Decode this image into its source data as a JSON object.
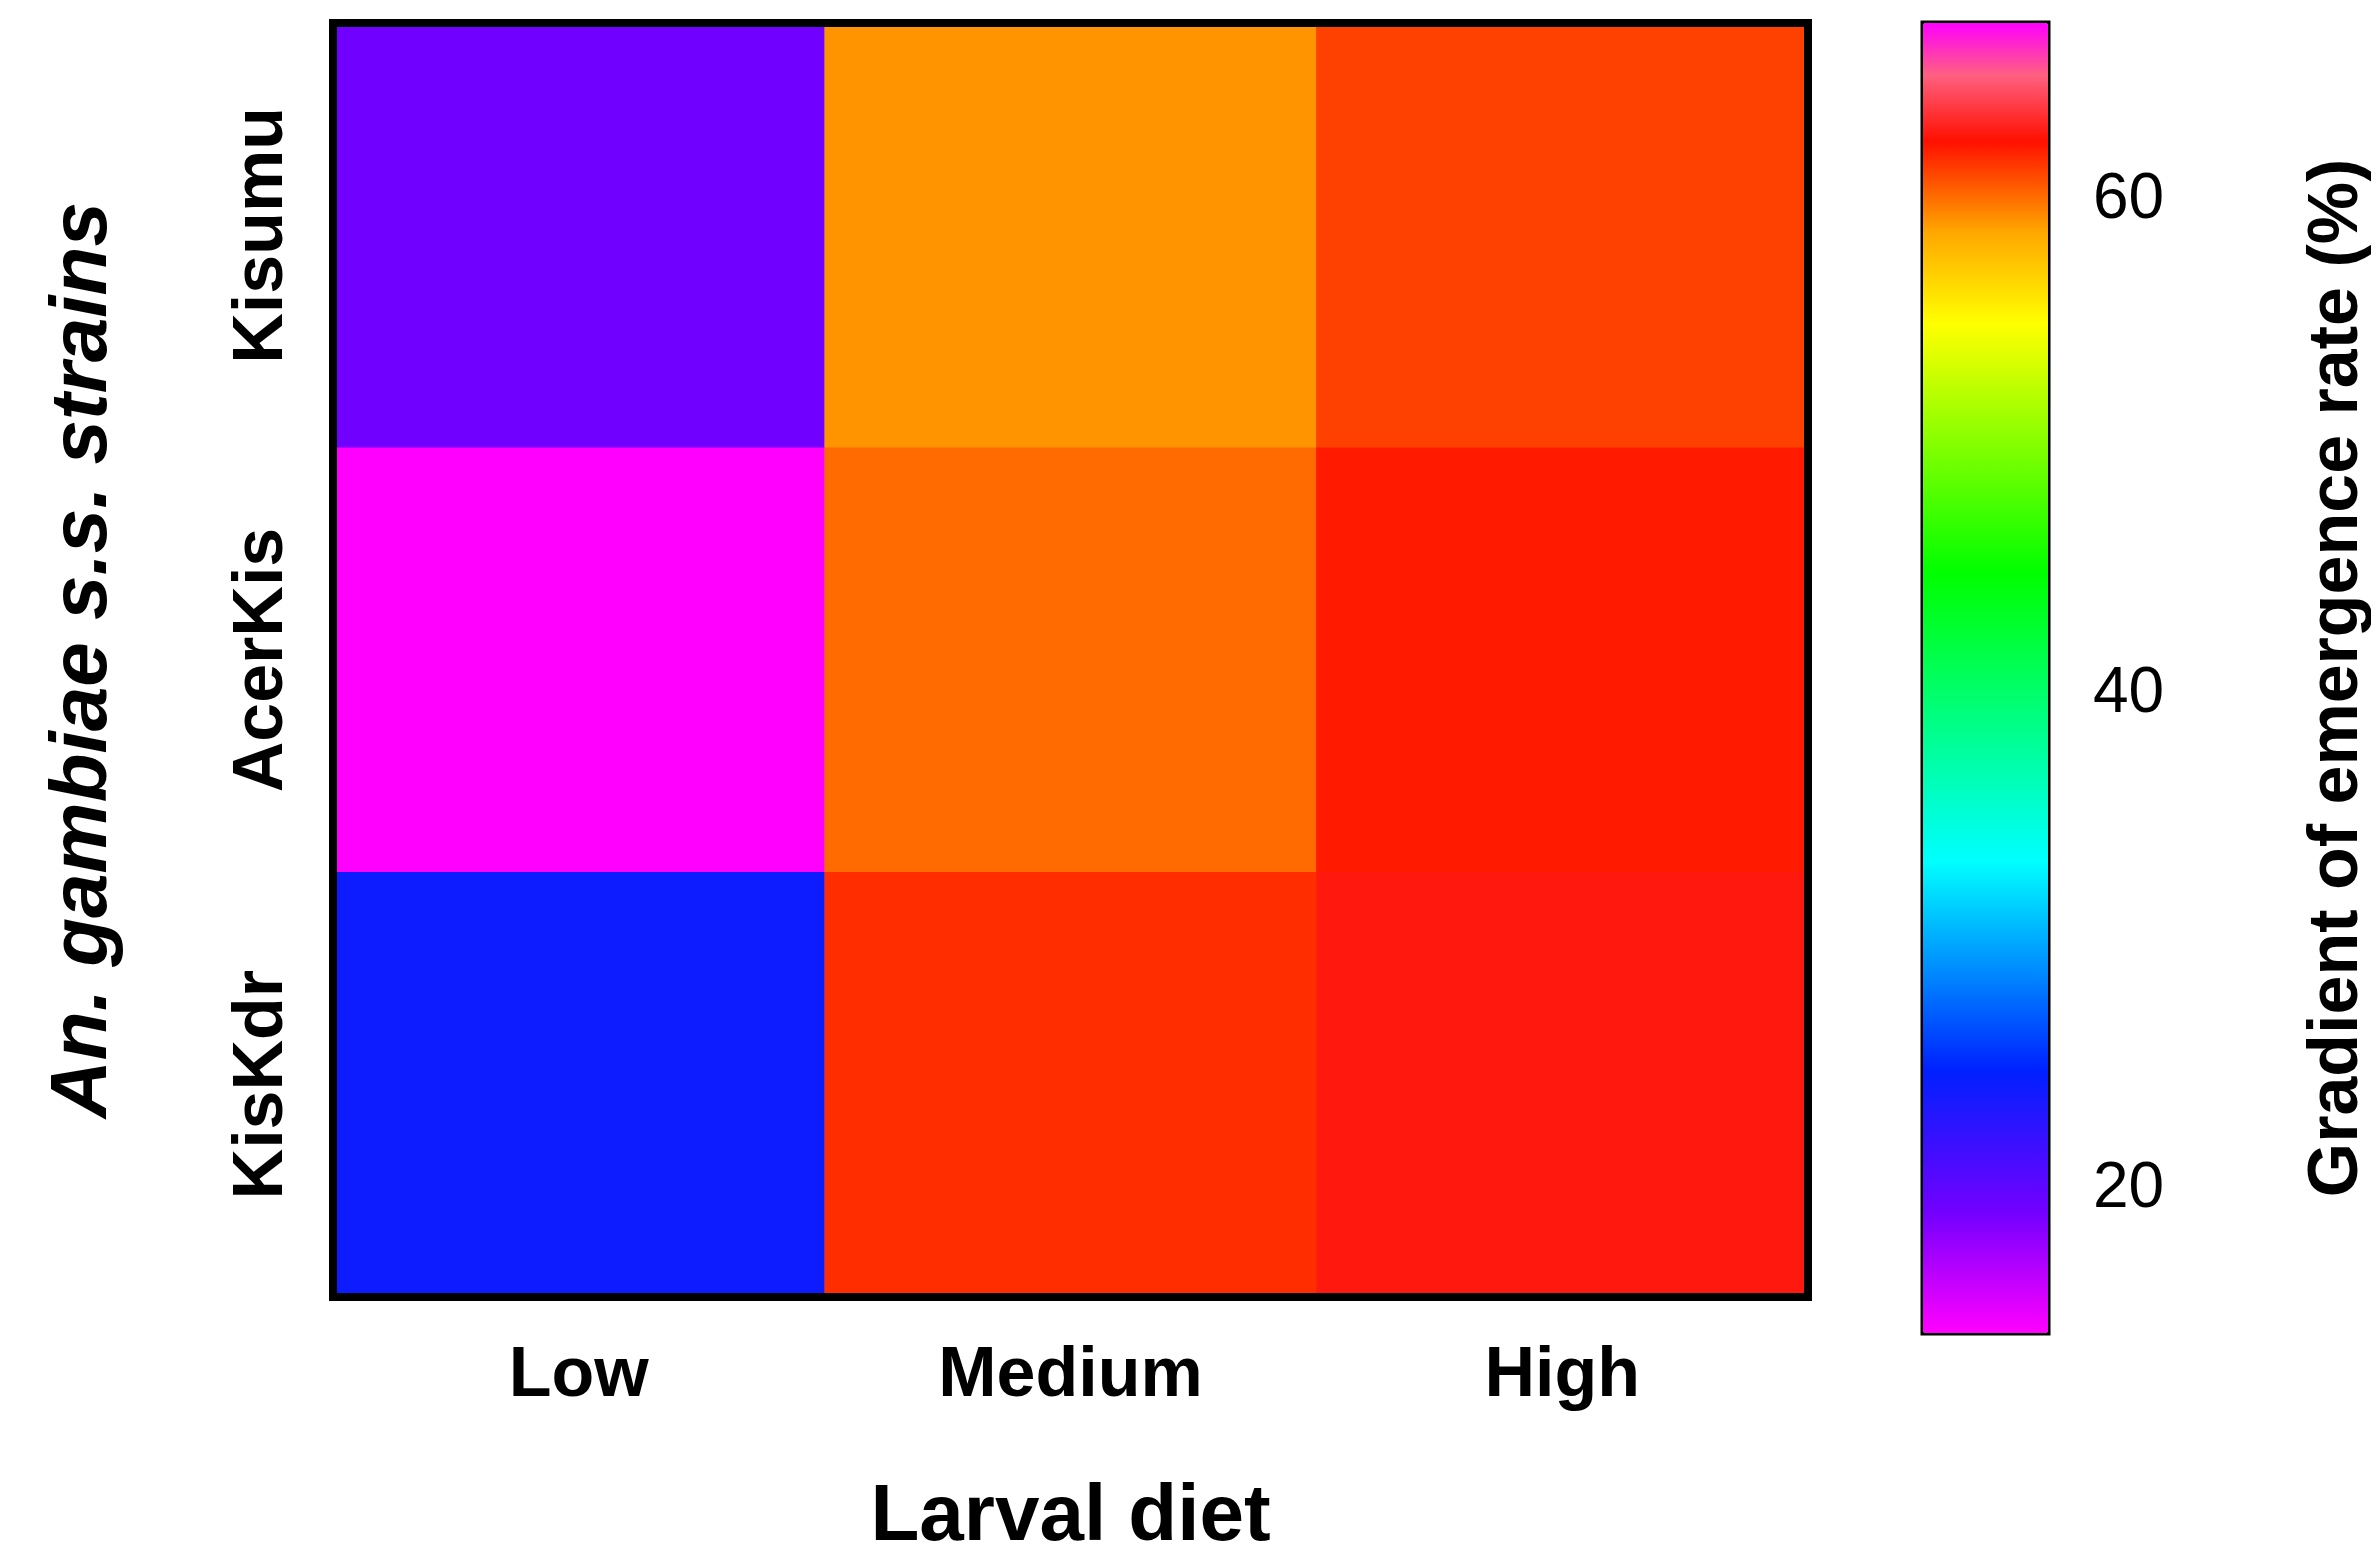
{
  "chart_data": {
    "type": "heatmap",
    "xlabel": "Larval diet",
    "ylabel": "An. gambiae s.s. strains",
    "clabel": "Gradient of emergence rate (%)",
    "categories": [
      "Low",
      "Medium",
      "High"
    ],
    "y_categories": [
      "Kisumu",
      "AcerKis",
      "KisKdr"
    ],
    "cells": [
      [
        19,
        59,
        61
      ],
      [
        14,
        60,
        62
      ],
      [
        24,
        61.5,
        62.5
      ]
    ],
    "clim": [
      14,
      67
    ],
    "cticks": [
      20,
      40,
      60
    ]
  }
}
